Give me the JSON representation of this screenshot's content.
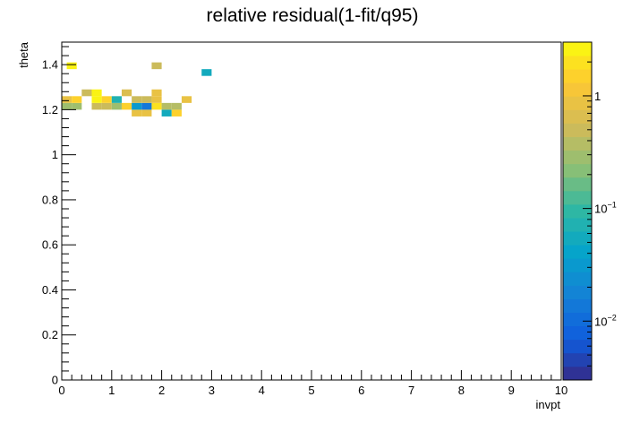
{
  "chart_data": {
    "type": "heatmap",
    "title": "relative residual(1-fit/q95)",
    "xlabel": "invpt",
    "ylabel": "theta",
    "xlim": [
      0,
      10
    ],
    "ylim": [
      0,
      1.5
    ],
    "x_bin_width": 0.2,
    "y_bin_width": 0.03,
    "x_tick_labels": [
      "0",
      "1",
      "2",
      "3",
      "4",
      "5",
      "6",
      "7",
      "8",
      "9",
      "10"
    ],
    "y_tick_labels": [
      "0",
      "0.2",
      "0.4",
      "0.6",
      "0.8",
      "1",
      "1.2",
      "1.4"
    ],
    "colorbar": {
      "scale": "log",
      "range": [
        0.003,
        3
      ],
      "tick_values": [
        0.01,
        0.1,
        1
      ],
      "tick_base": "10",
      "tick_exponents": [
        "−2",
        "−1",
        ""
      ],
      "tick_plain": [
        "",
        "",
        "1"
      ]
    },
    "cells": [
      {
        "x": 0.0,
        "y": 1.2,
        "z": 0.3
      },
      {
        "x": 0.0,
        "y": 1.23,
        "z": 0.8
      },
      {
        "x": 0.1,
        "y": 1.38,
        "z": 2.5
      },
      {
        "x": 0.2,
        "y": 1.2,
        "z": 0.3
      },
      {
        "x": 0.2,
        "y": 1.23,
        "z": 1.5
      },
      {
        "x": 0.4,
        "y": 1.26,
        "z": 0.5
      },
      {
        "x": 0.6,
        "y": 1.2,
        "z": 0.5
      },
      {
        "x": 0.6,
        "y": 1.23,
        "z": 2.5
      },
      {
        "x": 0.6,
        "y": 1.26,
        "z": 2.5
      },
      {
        "x": 0.8,
        "y": 1.2,
        "z": 0.5
      },
      {
        "x": 0.8,
        "y": 1.23,
        "z": 1.5
      },
      {
        "x": 1.0,
        "y": 1.2,
        "z": 0.3
      },
      {
        "x": 1.0,
        "y": 1.23,
        "z": 0.08
      },
      {
        "x": 1.2,
        "y": 1.2,
        "z": 1.5
      },
      {
        "x": 1.2,
        "y": 1.26,
        "z": 0.6
      },
      {
        "x": 1.4,
        "y": 1.17,
        "z": 0.8
      },
      {
        "x": 1.4,
        "y": 1.2,
        "z": 0.03
      },
      {
        "x": 1.4,
        "y": 1.23,
        "z": 0.5
      },
      {
        "x": 1.6,
        "y": 1.17,
        "z": 0.8
      },
      {
        "x": 1.6,
        "y": 1.2,
        "z": 0.015
      },
      {
        "x": 1.6,
        "y": 1.23,
        "z": 0.5
      },
      {
        "x": 1.8,
        "y": 1.2,
        "z": 2.0
      },
      {
        "x": 1.8,
        "y": 1.23,
        "z": 0.8
      },
      {
        "x": 1.8,
        "y": 1.26,
        "z": 0.8
      },
      {
        "x": 1.8,
        "y": 1.38,
        "z": 0.5
      },
      {
        "x": 2.0,
        "y": 1.17,
        "z": 0.06
      },
      {
        "x": 2.0,
        "y": 1.2,
        "z": 0.4
      },
      {
        "x": 2.2,
        "y": 1.17,
        "z": 1.5
      },
      {
        "x": 2.2,
        "y": 1.2,
        "z": 0.4
      },
      {
        "x": 2.4,
        "y": 1.23,
        "z": 0.8
      },
      {
        "x": 2.8,
        "y": 1.35,
        "z": 0.06
      }
    ]
  }
}
